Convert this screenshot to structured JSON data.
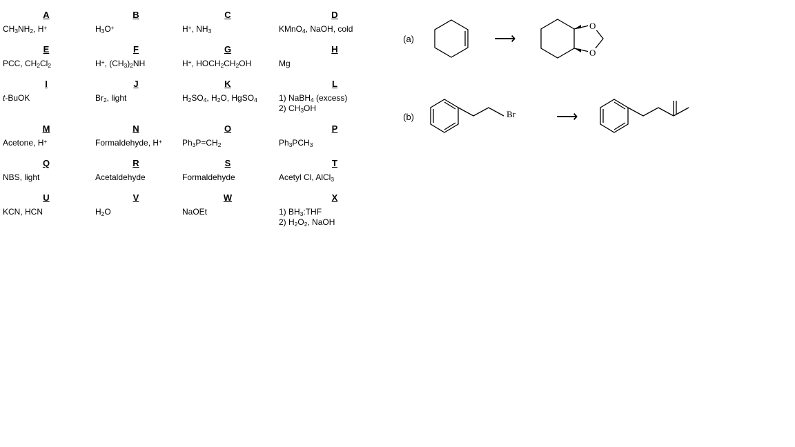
{
  "reagents": {
    "A": {
      "label": "A",
      "val": "CH<sub>3</sub>NH<sub>2</sub>, H<sup>+</sup>"
    },
    "B": {
      "label": "B",
      "val": "H<sub>3</sub>O<sup>+</sup>"
    },
    "C": {
      "label": "C",
      "val": "H<sup>+</sup>, NH<sub>3</sub>"
    },
    "D": {
      "label": "D",
      "val": "KMnO<sub>4</sub>, NaOH, cold"
    },
    "E": {
      "label": "E",
      "val": "PCC, CH<sub>2</sub>Cl<sub>2</sub>"
    },
    "F": {
      "label": "F",
      "val": "H<sup>+</sup>, (CH<sub>3</sub>)<sub>2</sub>NH"
    },
    "G": {
      "label": "G",
      "val": "H<sup>+</sup>, HOCH<sub>2</sub>CH<sub>2</sub>OH"
    },
    "H": {
      "label": "H",
      "val": "Mg"
    },
    "I": {
      "label": "I",
      "val": "<i>t</i>-BuOK"
    },
    "J": {
      "label": "J",
      "val": "Br<sub>2</sub>, light"
    },
    "K": {
      "label": "K",
      "val": "H<sub>2</sub>SO<sub>4</sub>, H<sub>2</sub>O, HgSO<sub>4</sub>"
    },
    "L": {
      "label": "L",
      "val": "1) NaBH<sub>4</sub> (excess)<br>2) CH<sub>3</sub>OH"
    },
    "M": {
      "label": "M",
      "val": "Acetone, H<sup>+</sup>"
    },
    "N": {
      "label": "N",
      "val": "Formaldehyde, H<sup>+</sup>"
    },
    "O": {
      "label": "O",
      "val": "Ph<sub>3</sub>P=CH<sub>2</sub>"
    },
    "P": {
      "label": "P",
      "val": "Ph<sub>3</sub>PCH<sub>3</sub>"
    },
    "Q": {
      "label": "Q",
      "val": "NBS, light"
    },
    "R": {
      "label": "R",
      "val": "Acetaldehyde"
    },
    "S": {
      "label": "S",
      "val": "Formaldehyde"
    },
    "T": {
      "label": "T",
      "val": "Acetyl Cl, AlCl<sub>3</sub>"
    },
    "U": {
      "label": "U",
      "val": "KCN, HCN"
    },
    "V": {
      "label": "V",
      "val": "H<sub>2</sub>O"
    },
    "W": {
      "label": "W",
      "val": "NaOEt"
    },
    "X": {
      "label": "X",
      "val": "1) BH<sub>3</sub>:THF<br>2) H<sub>2</sub>O<sub>2</sub>, NaOH"
    }
  },
  "order": [
    "A",
    "B",
    "C",
    "D",
    "E",
    "F",
    "G",
    "H",
    "I",
    "J",
    "K",
    "L",
    "M",
    "N",
    "O",
    "P",
    "Q",
    "R",
    "S",
    "T",
    "U",
    "V",
    "W",
    "X"
  ],
  "reactions": {
    "a": {
      "label": "(a)"
    },
    "b": {
      "label": "(b)"
    }
  },
  "style": {
    "stroke": "#000000",
    "strokeWidth": 1.3,
    "font": "Verdana",
    "bg": "#ffffff"
  }
}
